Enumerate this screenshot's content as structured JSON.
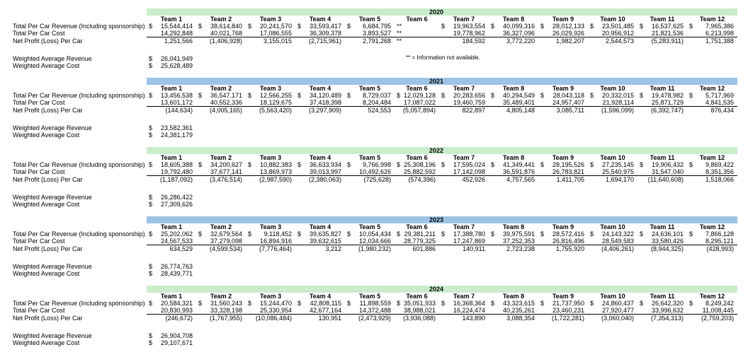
{
  "currency": "$",
  "note": "** = Information not available.",
  "colors": {
    "green": "#C9EDCB",
    "blue": "#9DC3E6"
  },
  "teams": [
    "Team 1",
    "Team 2",
    "Team 3",
    "Team 4",
    "Team 5",
    "Team 6",
    "Team 7",
    "Team 8",
    "Team 9",
    "Team 10",
    "Team 11",
    "Team 12"
  ],
  "row_labels": {
    "revenue": "Total Per Car Revenue (Including sponsorship)",
    "cost": "Total Per Car Cost",
    "net": "Net Profit (Loss) Per Car",
    "wavg_revenue": "Weighted Average Revenue",
    "wavg_cost": "Weighted Average Cost"
  },
  "chart_data": {
    "type": "table"
  },
  "sections": [
    {
      "year": "2020",
      "band": "green",
      "show_note": true,
      "revenue": [
        "15,544,414",
        "38,614,840",
        "20,241,570",
        "33,593,417",
        "6,684,795",
        "**",
        "19,963,554",
        "40,099,316",
        "28,012,133",
        "23,501,485",
        "16,537,625",
        "7,965,386"
      ],
      "cost": [
        "14,292,848",
        "40,021,768",
        "17,086,555",
        "36,309,378",
        "3,893,527",
        "**",
        "19,778,962",
        "36,327,096",
        "26,029,926",
        "20,956,912",
        "21,821,536",
        "6,213,998"
      ],
      "net": [
        "1,251,566",
        "(1,406,928)",
        "3,155,015",
        "(2,715,961)",
        "2,791,268",
        "**",
        "184,592",
        "3,772,220",
        "1,982,207",
        "2,544,573",
        "(5,283,911)",
        "1,751,388"
      ],
      "wavg_revenue": "26,041,949",
      "wavg_cost": "25,628,489"
    },
    {
      "year": "2021",
      "band": "blue",
      "show_note": false,
      "revenue": [
        "13,456,538",
        "36,547,171",
        "12,566,255",
        "34,120,489",
        "8,729,037",
        "12,029,128",
        "20,283,656",
        "40,294,549",
        "28,043,118",
        "20,332,015",
        "19,478,982",
        "5,717,969"
      ],
      "cost": [
        "13,601,172",
        "40,552,336",
        "18,129,675",
        "37,418,398",
        "8,204,484",
        "17,087,022",
        "19,460,759",
        "35,489,401",
        "24,957,407",
        "21,928,114",
        "25,871,729",
        "4,841,535"
      ],
      "net": [
        "(144,634)",
        "(4,005,165)",
        "(5,563,420)",
        "(3,297,909)",
        "524,553",
        "(5,057,894)",
        "822,897",
        "4,805,148",
        "3,085,711",
        "(1,596,099)",
        "(6,392,747)",
        "876,434"
      ],
      "wavg_revenue": "23,582,361",
      "wavg_cost": "24,381,179"
    },
    {
      "year": "2022",
      "band": "green",
      "show_note": false,
      "revenue": [
        "18,605,388",
        "34,200,627",
        "10,882,383",
        "36,633,934",
        "9,766,998",
        "25,308,196",
        "17,595,024",
        "41,349,441",
        "28,195,526",
        "27,235,145",
        "19,906,432",
        "9,869,422"
      ],
      "cost": [
        "19,792,480",
        "37,677,141",
        "13,869,973",
        "39,013,997",
        "10,492,626",
        "25,882,592",
        "17,142,098",
        "36,591,876",
        "26,783,821",
        "25,540,975",
        "31,547,040",
        "8,351,356"
      ],
      "net": [
        "(1,187,092)",
        "(3,476,514)",
        "(2,987,590)",
        "(2,380,063)",
        "(725,628)",
        "(574,396)",
        "452,926",
        "4,757,565",
        "1,411,705",
        "1,694,170",
        "(11,640,608)",
        "1,518,066"
      ],
      "wavg_revenue": "26,286,422",
      "wavg_cost": "27,309,626"
    },
    {
      "year": "2023",
      "band": "blue",
      "show_note": false,
      "revenue": [
        "25,202,062",
        "32,679,564",
        "9,118,452",
        "39,635,827",
        "10,054,434",
        "29,381,211",
        "17,388,780",
        "39,975,591",
        "28,572,416",
        "24,143,322",
        "24,636,101",
        "7,866,128"
      ],
      "cost": [
        "24,567,533",
        "37,279,098",
        "16,894,916",
        "39,632,615",
        "12,034,666",
        "28,779,325",
        "17,247,869",
        "37,252,353",
        "26,816,496",
        "28,549,583",
        "33,580,426",
        "8,295,121"
      ],
      "net": [
        "634,529",
        "(4,599,534)",
        "(7,776,464)",
        "3,212",
        "(1,980,232)",
        "601,886",
        "140,911",
        "2,723,238",
        "1,755,920",
        "(4,406,261)",
        "(8,944,325)",
        "(428,993)"
      ],
      "wavg_revenue": "26,774,763",
      "wavg_cost": "28,439,771"
    },
    {
      "year": "2024",
      "band": "green",
      "show_note": false,
      "revenue": [
        "20,584,321",
        "31,560,243",
        "15,244,470",
        "42,808,115",
        "11,898,559",
        "35,051,933",
        "16,368,364",
        "43,323,615",
        "21,737,950",
        "24,860,437",
        "26,642,320",
        "8,249,242"
      ],
      "cost": [
        "20,830,993",
        "33,328,198",
        "25,330,954",
        "42,677,164",
        "14,372,488",
        "38,988,021",
        "16,224,474",
        "40,235,261",
        "23,460,231",
        "27,920,477",
        "33,996,632",
        "11,008,445"
      ],
      "net": [
        "(246,672)",
        "(1,767,955)",
        "(10,086,484)",
        "130,951",
        "(2,473,929)",
        "(3,936,088)",
        "143,890",
        "3,088,354",
        "(1,722,281)",
        "(3,060,040)",
        "(7,354,313)",
        "(2,759,203)"
      ],
      "wavg_revenue": "26,904,708",
      "wavg_cost": "29,107,671"
    }
  ]
}
